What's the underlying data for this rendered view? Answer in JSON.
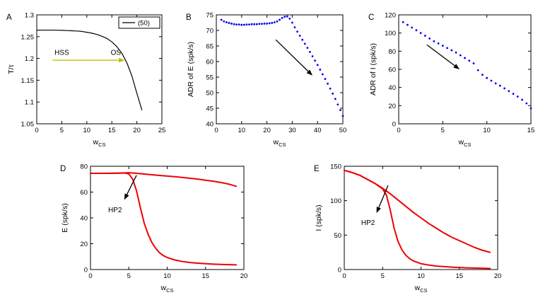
{
  "figure": {
    "background": "#ffffff",
    "dot_color": "#0000ee",
    "red_curve_color": "#ee0000",
    "black_curve_color": "#000000",
    "yellow_arrow_color": "#bfbf00",
    "red_annotation_color": "#ff0000"
  },
  "chart_data": [
    {
      "id": "A",
      "type": "line",
      "panel_label": "A",
      "xlabel": {
        "base": "w",
        "sub": "CS"
      },
      "ylabel": "T/τ",
      "xlim": [
        0,
        25
      ],
      "ylim": [
        1.05,
        1.3
      ],
      "xticks": [
        0,
        5,
        10,
        15,
        20,
        25
      ],
      "yticks": [
        1.05,
        1.1,
        1.15,
        1.2,
        1.25,
        1.3
      ],
      "legend": {
        "entries": [
          {
            "label": "(50)",
            "color": "#000000"
          }
        ]
      },
      "series": [
        {
          "name": "(50)",
          "style": "line",
          "color": "#000000",
          "width": 1.2,
          "x": [
            0,
            1,
            2,
            3,
            4,
            5,
            6,
            7,
            8,
            9,
            10,
            11,
            12,
            13,
            14,
            15,
            16,
            17,
            18,
            19,
            20,
            21
          ],
          "y": [
            1.265,
            1.265,
            1.265,
            1.265,
            1.2648,
            1.2645,
            1.264,
            1.2635,
            1.263,
            1.262,
            1.26,
            1.258,
            1.255,
            1.251,
            1.246,
            1.238,
            1.227,
            1.212,
            1.19,
            1.16,
            1.12,
            1.082
          ]
        }
      ],
      "texts": [
        {
          "label": "HSS",
          "x": 5,
          "y": 1.213,
          "color": "#ff0000"
        },
        {
          "label": "OS",
          "x": 15.8,
          "y": 1.213,
          "color": "#ff0000"
        }
      ],
      "arrows": [
        {
          "x1": 3.2,
          "y1": 1.196,
          "x2": 17.6,
          "y2": 1.196,
          "color": "#bfbf00"
        }
      ]
    },
    {
      "id": "B",
      "type": "scatter",
      "panel_label": "B",
      "xlabel": {
        "base": "w",
        "sub": "CS"
      },
      "ylabel": "ADR of E (spk/s)",
      "xlim": [
        0,
        50
      ],
      "ylim": [
        40,
        75
      ],
      "xticks": [
        0,
        10,
        20,
        30,
        40,
        50
      ],
      "yticks": [
        40,
        45,
        50,
        55,
        60,
        65,
        70,
        75
      ],
      "legend": null,
      "series": [
        {
          "name": "ADR of E",
          "style": "dots",
          "color": "#0000ee",
          "x": [
            2,
            3,
            4,
            5,
            6,
            7,
            8,
            9,
            10,
            11,
            12,
            13,
            14,
            15,
            16,
            17,
            18,
            19,
            20,
            21,
            22,
            23,
            24,
            25,
            26,
            27,
            28,
            29,
            30,
            31,
            32,
            33,
            34,
            35,
            36,
            37,
            38,
            39,
            40,
            41,
            42,
            43,
            44,
            45,
            46,
            47,
            48,
            49,
            50
          ],
          "y": [
            73.4,
            72.9,
            72.6,
            72.4,
            72.2,
            72.0,
            71.9,
            71.9,
            71.8,
            71.8,
            71.9,
            71.9,
            72.0,
            72.0,
            72.0,
            72.1,
            72.1,
            72.2,
            72.2,
            72.3,
            72.4,
            72.6,
            72.9,
            73.4,
            74.0,
            74.4,
            74.5,
            73.8,
            72.5,
            71.0,
            69.6,
            68.3,
            67.0,
            65.7,
            64.4,
            63.1,
            61.7,
            60.3,
            58.9,
            57.4,
            55.9,
            54.4,
            52.9,
            51.3,
            49.7,
            48.0,
            46.2,
            44.4,
            42.5
          ]
        }
      ],
      "texts": [],
      "arrows": [
        {
          "x1": 23.5,
          "y1": 67,
          "x2": 38,
          "y2": 55.5,
          "color": "#000000"
        }
      ]
    },
    {
      "id": "C",
      "type": "scatter",
      "panel_label": "C",
      "xlabel": {
        "base": "w",
        "sub": "CS"
      },
      "ylabel": "ADR of I (spk/s)",
      "xlim": [
        0,
        15
      ],
      "ylim": [
        0,
        120
      ],
      "xticks": [
        0,
        5,
        10,
        15
      ],
      "yticks": [
        0,
        20,
        40,
        60,
        80,
        100,
        120
      ],
      "legend": null,
      "series": [
        {
          "name": "ADR of I",
          "style": "dots",
          "color": "#0000ee",
          "x": [
            0.5,
            1,
            1.5,
            2,
            2.5,
            3,
            3.5,
            4,
            4.5,
            5,
            5.5,
            6,
            6.5,
            7,
            7.5,
            8,
            8.5,
            9,
            9.5,
            10,
            10.5,
            11,
            11.5,
            12,
            12.5,
            13,
            13.5,
            14,
            14.5,
            15
          ],
          "y": [
            112,
            109,
            106,
            103,
            100,
            97,
            94,
            91,
            88.5,
            86,
            83.5,
            81,
            78.5,
            75.5,
            72.5,
            69.5,
            66.5,
            59,
            54,
            50.5,
            47.5,
            44.5,
            42,
            39,
            36,
            33,
            30,
            26.5,
            22.5,
            17
          ]
        }
      ],
      "texts": [],
      "arrows": [
        {
          "x1": 3.2,
          "y1": 87,
          "x2": 6.9,
          "y2": 60,
          "color": "#000000"
        }
      ]
    },
    {
      "id": "D",
      "type": "line",
      "panel_label": "D",
      "xlabel": {
        "base": "w",
        "sub": "CS"
      },
      "ylabel": "E (spk/s)",
      "xlim": [
        0,
        20
      ],
      "ylim": [
        0,
        80
      ],
      "xticks": [
        0,
        5,
        10,
        15,
        20
      ],
      "yticks": [
        0,
        20,
        40,
        60,
        80
      ],
      "legend": null,
      "series": [
        {
          "name": "upper branch",
          "style": "line",
          "color": "#ee0000",
          "width": 2,
          "x": [
            0,
            1,
            2,
            3,
            4,
            5,
            6,
            7,
            8,
            9,
            10,
            11,
            12,
            13,
            14,
            15,
            16,
            17,
            18,
            19
          ],
          "y": [
            74.5,
            74.5,
            74.5,
            74.6,
            74.7,
            75,
            74.5,
            74,
            73.4,
            72.9,
            72.4,
            71.9,
            71.3,
            70.7,
            70,
            69.2,
            68.4,
            67.4,
            66.2,
            64.5
          ]
        },
        {
          "name": "lower branch",
          "style": "line",
          "color": "#ee0000",
          "width": 2,
          "x": [
            0,
            1,
            2,
            3,
            4,
            4.5,
            5,
            5.5,
            6,
            6.5,
            7,
            7.5,
            8,
            8.5,
            9,
            9.5,
            10,
            11,
            12,
            13,
            14,
            15,
            16,
            17,
            18,
            19
          ],
          "y": [
            74.5,
            74.5,
            74.5,
            74.6,
            74.7,
            74.8,
            74,
            70,
            61,
            48,
            36,
            27.5,
            21,
            16.5,
            13,
            10.8,
            9.3,
            7.4,
            6.2,
            5.4,
            4.9,
            4.5,
            4.2,
            4,
            3.8,
            3.6
          ]
        }
      ],
      "texts": [
        {
          "label": "HP2",
          "x": 3.2,
          "y": 46,
          "color": "#000000"
        }
      ],
      "arrows": [
        {
          "x1": 6.0,
          "y1": 73,
          "x2": 4.4,
          "y2": 54,
          "color": "#000000"
        }
      ]
    },
    {
      "id": "E",
      "type": "line",
      "panel_label": "E",
      "xlabel": {
        "base": "w",
        "sub": "CS"
      },
      "ylabel": "I (spk/s)",
      "xlim": [
        0,
        20
      ],
      "ylim": [
        0,
        150
      ],
      "xticks": [
        0,
        5,
        10,
        15,
        20
      ],
      "yticks": [
        0,
        50,
        100,
        150
      ],
      "legend": null,
      "series": [
        {
          "name": "upper branch",
          "style": "line",
          "color": "#ee0000",
          "width": 2,
          "x": [
            0,
            1,
            2,
            3,
            4,
            5,
            5.5,
            6,
            7,
            8,
            9,
            10,
            11,
            12,
            13,
            14,
            15,
            16,
            17,
            18,
            19
          ],
          "y": [
            144,
            141,
            137,
            131,
            125,
            118,
            114,
            110,
            101,
            92,
            83,
            75,
            67,
            60,
            53,
            47,
            42,
            37,
            32,
            28,
            25
          ]
        },
        {
          "name": "lower branch",
          "style": "line",
          "color": "#ee0000",
          "width": 2,
          "x": [
            0,
            1,
            2,
            3,
            4,
            5,
            5.5,
            6,
            6.5,
            7,
            7.5,
            8,
            8.5,
            9,
            10,
            11,
            12,
            14,
            16,
            19
          ],
          "y": [
            144,
            141,
            137,
            131,
            125,
            117,
            108,
            86,
            60,
            41,
            29,
            21,
            16,
            12.5,
            8.5,
            6.5,
            5,
            3.5,
            2.5,
            1.5
          ]
        }
      ],
      "texts": [
        {
          "label": "HP2",
          "x": 3.1,
          "y": 68,
          "color": "#000000"
        }
      ],
      "arrows": [
        {
          "x1": 5.7,
          "y1": 122,
          "x2": 4.2,
          "y2": 82,
          "color": "#000000"
        }
      ]
    }
  ]
}
